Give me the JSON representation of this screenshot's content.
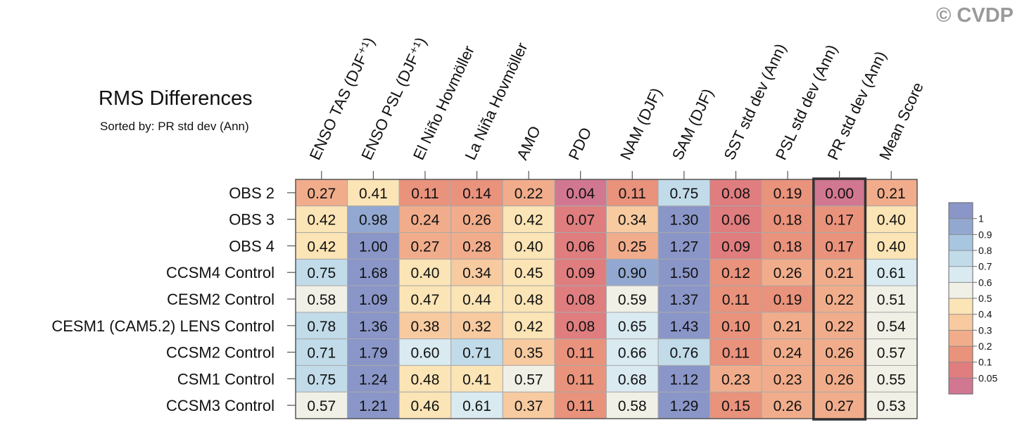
{
  "watermark": "© CVDP",
  "chart_data": {
    "type": "heatmap",
    "title": "RMS Differences",
    "subtitle": "Sorted by: PR std dev (Ann)",
    "columns": [
      "ENSO TAS (DJF⁺¹)",
      "ENSO PSL (DJF⁺¹)",
      "El Niño Hovmöller",
      "La Niña Hovmöller",
      "AMO",
      "PDO",
      "NAM (DJF)",
      "SAM (DJF)",
      "SST std dev (Ann)",
      "PSL std dev (Ann)",
      "PR std dev (Ann)",
      "Mean Score"
    ],
    "rows": [
      "OBS 2",
      "OBS 3",
      "OBS 4",
      "CCSM4 Control",
      "CESM2 Control",
      "CESM1 (CAM5.2) LENS Control",
      "CCSM2 Control",
      "CSM1 Control",
      "CCSM3 Control"
    ],
    "values": [
      [
        "0.27",
        "0.41",
        "0.11",
        "0.14",
        "0.22",
        "0.04",
        "0.11",
        "0.75",
        "0.08",
        "0.19",
        "0.00",
        "0.21"
      ],
      [
        "0.42",
        "0.98",
        "0.24",
        "0.26",
        "0.42",
        "0.07",
        "0.34",
        "1.30",
        "0.06",
        "0.18",
        "0.17",
        "0.40"
      ],
      [
        "0.42",
        "1.00",
        "0.27",
        "0.28",
        "0.40",
        "0.06",
        "0.25",
        "1.27",
        "0.09",
        "0.18",
        "0.17",
        "0.40"
      ],
      [
        "0.75",
        "1.68",
        "0.40",
        "0.34",
        "0.45",
        "0.09",
        "0.90",
        "1.50",
        "0.12",
        "0.26",
        "0.21",
        "0.61"
      ],
      [
        "0.58",
        "1.09",
        "0.47",
        "0.44",
        "0.48",
        "0.08",
        "0.59",
        "1.37",
        "0.11",
        "0.19",
        "0.22",
        "0.51"
      ],
      [
        "0.78",
        "1.36",
        "0.38",
        "0.32",
        "0.42",
        "0.08",
        "0.65",
        "1.43",
        "0.10",
        "0.21",
        "0.22",
        "0.54"
      ],
      [
        "0.71",
        "1.79",
        "0.60",
        "0.71",
        "0.35",
        "0.11",
        "0.66",
        "0.76",
        "0.11",
        "0.24",
        "0.26",
        "0.57"
      ],
      [
        "0.75",
        "1.24",
        "0.48",
        "0.41",
        "0.57",
        "0.11",
        "0.68",
        "1.12",
        "0.23",
        "0.23",
        "0.26",
        "0.55"
      ],
      [
        "0.57",
        "1.21",
        "0.46",
        "0.61",
        "0.37",
        "0.11",
        "0.58",
        "1.29",
        "0.15",
        "0.26",
        "0.27",
        "0.53"
      ]
    ],
    "sorted_column": "PR std dev (Ann)",
    "colorbar": {
      "levels": [
        "0.05",
        "0.1",
        "0.2",
        "0.3",
        "0.4",
        "0.5",
        "0.6",
        "0.7",
        "0.8",
        "0.9",
        "1"
      ],
      "colors": [
        "#d27791",
        "#e07d7f",
        "#e9927c",
        "#f1ad8b",
        "#f7caa0",
        "#fbe4b5",
        "#f1f0e6",
        "#d9eaf0",
        "#c1dbe9",
        "#a9c6e1",
        "#92a8d0",
        "#8a96c8"
      ]
    }
  }
}
